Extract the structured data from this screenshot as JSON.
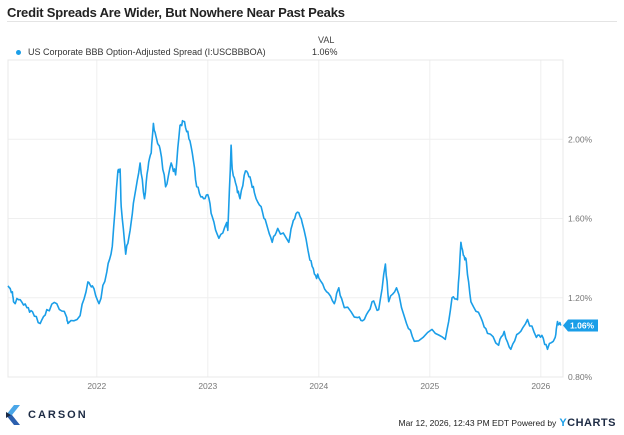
{
  "chart_data": {
    "type": "line",
    "title": "Credit Spreads Are Wider, But Nowhere Near Past Peaks",
    "legend_header": "VAL",
    "series": [
      {
        "name": "US Corporate BBB Option-Adjusted Spread (I:USCBBBOA)",
        "last_value_label": "1.06%",
        "color": "#1a9ee8",
        "x": [
          2021.2,
          2021.24,
          2021.25,
          2021.31,
          2021.37,
          2021.42,
          2021.49,
          2021.55,
          2021.64,
          2021.73,
          2021.74,
          2021.85,
          2021.92,
          2021.96,
          2022.02,
          2022.09,
          2022.14,
          2022.19,
          2022.21,
          2022.22,
          2022.26,
          2022.3,
          2022.34,
          2022.39,
          2022.43,
          2022.46,
          2022.49,
          2022.51,
          2022.54,
          2022.57,
          2022.62,
          2022.67,
          2022.71,
          2022.75,
          2022.78,
          2022.82,
          2022.86,
          2022.9,
          2022.95,
          2023.0,
          2023.04,
          2023.1,
          2023.17,
          2023.18,
          2023.21,
          2023.22,
          2023.26,
          2023.29,
          2023.34,
          2023.38,
          2023.42,
          2023.48,
          2023.53,
          2023.58,
          2023.63,
          2023.73,
          2023.77,
          2023.82,
          2023.85,
          2023.92,
          2023.96,
          2024.0,
          2024.07,
          2024.14,
          2024.18,
          2024.23,
          2024.35,
          2024.41,
          2024.48,
          2024.54,
          2024.6,
          2024.63,
          2024.7,
          2024.79,
          2024.86,
          2025.02,
          2025.14,
          2025.2,
          2025.25,
          2025.28,
          2025.31,
          2025.33,
          2025.37,
          2025.46,
          2025.52,
          2025.62,
          2025.67,
          2025.73,
          2025.8,
          2025.88,
          2025.96,
          2026.01,
          2026.06,
          2026.13,
          2026.15,
          2026.18
        ],
        "values": [
          1.26,
          1.23,
          1.18,
          1.19,
          1.15,
          1.13,
          1.07,
          1.14,
          1.17,
          1.1,
          1.07,
          1.11,
          1.28,
          1.26,
          1.17,
          1.33,
          1.46,
          1.84,
          1.85,
          1.66,
          1.42,
          1.54,
          1.71,
          1.88,
          1.7,
          1.85,
          1.93,
          2.08,
          2.0,
          1.95,
          1.76,
          1.88,
          1.82,
          2.07,
          2.09,
          2.04,
          1.93,
          1.76,
          1.71,
          1.72,
          1.61,
          1.5,
          1.58,
          1.54,
          1.97,
          1.85,
          1.76,
          1.7,
          1.84,
          1.81,
          1.73,
          1.66,
          1.57,
          1.48,
          1.55,
          1.48,
          1.59,
          1.63,
          1.58,
          1.39,
          1.32,
          1.3,
          1.23,
          1.17,
          1.25,
          1.15,
          1.1,
          1.09,
          1.18,
          1.14,
          1.37,
          1.18,
          1.25,
          1.07,
          0.98,
          1.04,
          0.99,
          1.2,
          1.19,
          1.48,
          1.41,
          1.38,
          1.18,
          1.1,
          1.02,
          0.96,
          1.03,
          0.94,
          1.02,
          1.09,
          1.0,
          1.01,
          0.94,
          1.0,
          1.08,
          1.06
        ]
      }
    ],
    "xlim": [
      2021.2,
      2026.2
    ],
    "ylim": [
      0.8,
      2.4
    ],
    "x_ticks": [
      2022,
      2023,
      2024,
      2025,
      2026
    ],
    "x_tick_labels": [
      "2022",
      "2023",
      "2024",
      "2025",
      "2026"
    ],
    "y_ticks": [
      0.8,
      1.2,
      1.6,
      2.0
    ],
    "y_tick_labels": [
      "0.80%",
      "1.20%",
      "1.60%",
      "2.00%"
    ],
    "grid": true,
    "legend_position": "top-left",
    "y_axis_side": "right"
  },
  "footer": {
    "logo_text": "CARSON",
    "timestamp": "Mar 12, 2026, 12:43 PM EDT",
    "powered_by": "Powered by",
    "brand_y": "Y",
    "brand_rest": "CHARTS"
  }
}
